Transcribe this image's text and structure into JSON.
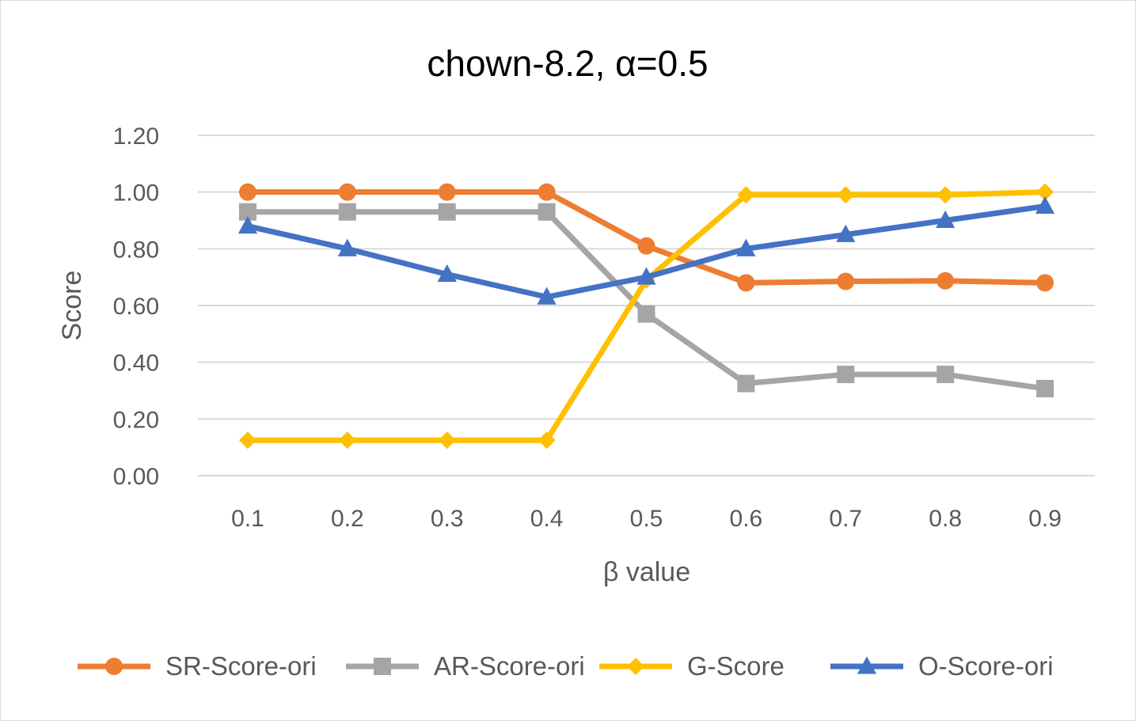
{
  "chart_data": {
    "type": "line",
    "title": "chown-8.2, α=0.5",
    "xlabel": "β value",
    "ylabel": "Score",
    "categories": [
      "0.1",
      "0.2",
      "0.3",
      "0.4",
      "0.5",
      "0.6",
      "0.7",
      "0.8",
      "0.9"
    ],
    "ylim": [
      0,
      1.2
    ],
    "yticks": [
      "0.00",
      "0.20",
      "0.40",
      "0.60",
      "0.80",
      "1.00",
      "1.20"
    ],
    "grid": true,
    "legend_position": "bottom",
    "series": [
      {
        "name": "SR-Score-ori",
        "color": "#ED7D31",
        "marker": "circle",
        "values": [
          1.0,
          1.0,
          1.0,
          1.0,
          0.81,
          0.68,
          0.685,
          0.687,
          0.68
        ]
      },
      {
        "name": "AR-Score-ori",
        "color": "#A5A5A5",
        "marker": "square",
        "values": [
          0.93,
          0.93,
          0.93,
          0.93,
          0.57,
          0.325,
          0.357,
          0.357,
          0.307
        ]
      },
      {
        "name": "G-Score",
        "color": "#FFC000",
        "marker": "diamond",
        "values": [
          0.125,
          0.125,
          0.125,
          0.125,
          0.69,
          0.99,
          0.99,
          0.99,
          1.0
        ]
      },
      {
        "name": "O-Score-ori",
        "color": "#4472C4",
        "marker": "triangle",
        "values": [
          0.88,
          0.8,
          0.71,
          0.63,
          0.7,
          0.8,
          0.85,
          0.9,
          0.95
        ]
      }
    ]
  }
}
